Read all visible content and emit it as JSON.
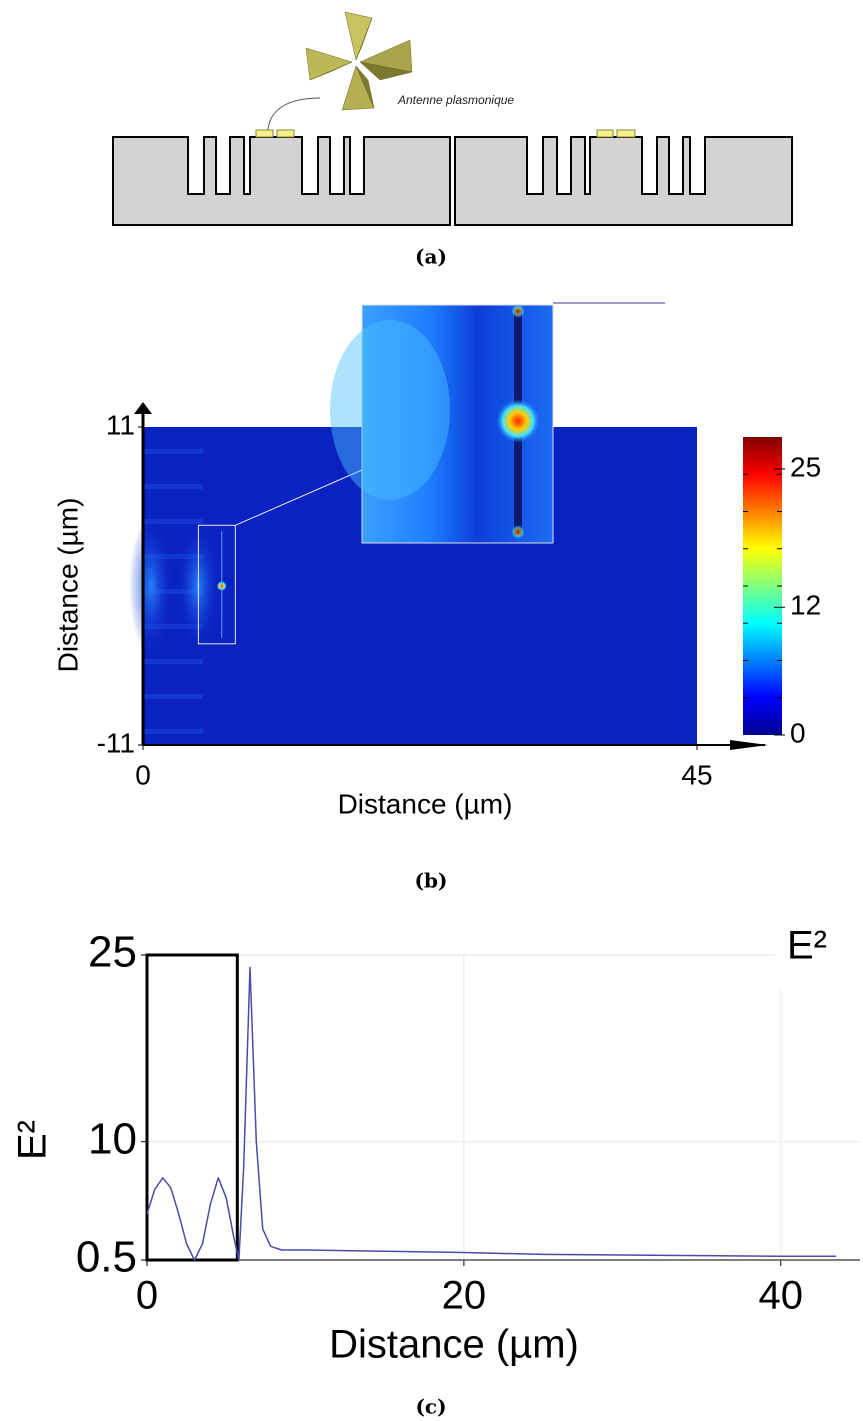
{
  "diagram": {
    "label": "Antenne plasmonique",
    "caption": "(a)"
  },
  "chart_data": [
    {
      "type": "heatmap",
      "caption": "(b)",
      "xlabel": "Distance (µm)",
      "ylabel": "Distance (µm)",
      "xlim": [
        0,
        45
      ],
      "ylim": [
        -11,
        11
      ],
      "xticks": [
        0,
        45
      ],
      "yticks": [
        -11,
        11
      ],
      "hotspot": {
        "x": 6.4,
        "y": 0
      },
      "zoom": {
        "xlim": [
          4.5,
          7.5
        ],
        "ylim": [
          -4,
          4.2
        ]
      },
      "colorbar": {
        "clim": [
          0,
          28
        ],
        "ticks": [
          0,
          12,
          25
        ],
        "colors": [
          "#00008f",
          "#0000ff",
          "#0080ff",
          "#00ffff",
          "#80ff80",
          "#ffff00",
          "#ff8000",
          "#ff0000",
          "#800000"
        ]
      }
    },
    {
      "type": "line",
      "caption": "(c)",
      "xlabel": "Distance (µm)",
      "ylabel": "E²",
      "x": [
        0,
        0.5,
        1,
        1.5,
        2,
        2.5,
        3,
        3.5,
        4,
        4.5,
        5,
        5.5,
        5.8,
        6.1,
        6.5,
        6.9,
        7.3,
        7.8,
        8.5,
        10,
        15,
        20,
        25,
        30,
        35,
        40,
        43.5
      ],
      "series": [
        {
          "name": "E²",
          "color": "#4b4ba8",
          "values": [
            4.2,
            6.2,
            7.1,
            6.3,
            4.2,
            1.8,
            0.5,
            1.8,
            5.0,
            7.1,
            5.5,
            2.2,
            0.5,
            8,
            24,
            10,
            3,
            1.6,
            1.3,
            1.3,
            1.2,
            1.1,
            0.95,
            0.9,
            0.85,
            0.8,
            0.8
          ]
        }
      ],
      "xlim": [
        0,
        45
      ],
      "ylim": [
        0.5,
        25
      ],
      "xticks": [
        0,
        20,
        40
      ],
      "yticks": [
        0.5,
        10,
        25
      ],
      "grid": true,
      "legend": "upper right",
      "highlight_xlim": [
        0,
        5.7
      ]
    }
  ]
}
